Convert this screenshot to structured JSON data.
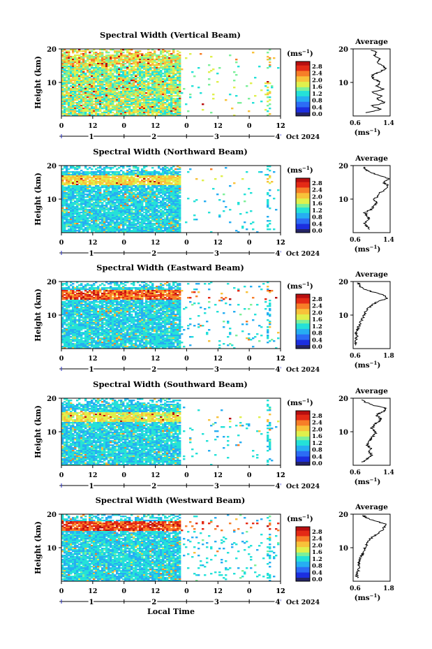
{
  "figure": {
    "xlabel": "Local Time",
    "date_label": "Oct 2024",
    "ylabel": "Height (km)",
    "unit_label": "(ms",
    "unit_exp": "−1",
    "average_title": "Average",
    "colorbar_ticks": [
      "0.0",
      "0.4",
      "0.8",
      "1.2",
      "1.6",
      "2.0",
      "2.4",
      "2.8"
    ],
    "colorbar_colors": [
      "#252466",
      "#1c2fe0",
      "#2c6cf5",
      "#26aef2",
      "#24e1d8",
      "#7cf09a",
      "#e0f04c",
      "#f8c23a",
      "#f77e28",
      "#e42a16",
      "#b80f10"
    ]
  },
  "chart_data": [
    {
      "type": "heatmap",
      "title": "Spectral Width (Vertical Beam)",
      "x_ticks": [
        "0",
        "12",
        "0",
        "12",
        "0",
        "12",
        "0",
        "12"
      ],
      "day_labels": [
        "1",
        "2",
        "3",
        "4"
      ],
      "y_ticks": [
        20,
        10
      ],
      "ylim": [
        0,
        20
      ],
      "colorbar_range": [
        0.0,
        3.0
      ],
      "data_coverage": "continuous ~0 to 2 days, sparse after",
      "average_profile": {
        "xlim": [
          0.6,
          1.4
        ],
        "x_ticks": [
          "0.6",
          "1.4"
        ],
        "y_ticks": [
          20,
          10
        ],
        "height_km": [
          1,
          2,
          3,
          4,
          5,
          6,
          7,
          8,
          9,
          10,
          11,
          12,
          13,
          14,
          15,
          16,
          17,
          18,
          19,
          20
        ],
        "value": [
          0.9,
          1.2,
          1.0,
          1.3,
          1.1,
          1.2,
          1.0,
          1.25,
          1.1,
          1.2,
          1.05,
          1.0,
          1.15,
          1.3,
          1.25,
          1.1,
          1.2,
          1.05,
          1.1,
          0.95
        ]
      }
    },
    {
      "type": "heatmap",
      "title": "Spectral Width (Northward Beam)",
      "x_ticks": [
        "0",
        "12",
        "0",
        "12",
        "0",
        "12",
        "0",
        "12"
      ],
      "day_labels": [
        "1",
        "2",
        "3",
        "4"
      ],
      "y_ticks": [
        20,
        10
      ],
      "ylim": [
        0,
        20
      ],
      "colorbar_range": [
        0.0,
        3.0
      ],
      "average_profile": {
        "xlim": [
          0.6,
          1.4
        ],
        "x_ticks": [
          "0.6",
          "1.4"
        ],
        "y_ticks": [
          20,
          10
        ],
        "height_km": [
          1,
          2,
          3,
          4,
          5,
          6,
          7,
          8,
          9,
          10,
          11,
          12,
          13,
          14,
          15,
          16,
          17,
          18,
          19,
          20
        ],
        "value": [
          0.95,
          0.9,
          0.85,
          0.95,
          0.9,
          0.85,
          1.0,
          1.05,
          1.1,
          1.05,
          1.15,
          1.2,
          1.3,
          1.35,
          1.25,
          1.4,
          1.2,
          0.95,
          0.85,
          0.8
        ]
      }
    },
    {
      "type": "heatmap",
      "title": "Spectral Width (Eastward Beam)",
      "x_ticks": [
        "0",
        "12",
        "0",
        "12",
        "0",
        "12",
        "0",
        "12"
      ],
      "day_labels": [
        "1",
        "2",
        "3",
        "4"
      ],
      "y_ticks": [
        20,
        10
      ],
      "ylim": [
        0,
        20
      ],
      "colorbar_range": [
        0.0,
        3.0
      ],
      "average_profile": {
        "xlim": [
          0.6,
          1.8
        ],
        "x_ticks": [
          "0.6",
          "1.8"
        ],
        "y_ticks": [
          20,
          10
        ],
        "height_km": [
          1,
          2,
          3,
          4,
          5,
          6,
          7,
          8,
          9,
          10,
          11,
          12,
          13,
          14,
          15,
          16,
          17,
          18,
          19,
          20
        ],
        "value": [
          0.7,
          0.65,
          0.7,
          0.72,
          0.7,
          0.75,
          0.8,
          0.85,
          0.9,
          0.95,
          1.0,
          1.1,
          1.2,
          1.4,
          1.7,
          1.6,
          1.2,
          0.9,
          0.8,
          0.75
        ]
      }
    },
    {
      "type": "heatmap",
      "title": "Spectral Width (Southward Beam)",
      "x_ticks": [
        "0",
        "12",
        "0",
        "12",
        "0",
        "12",
        "0",
        "12"
      ],
      "day_labels": [
        "1",
        "2",
        "3",
        "4"
      ],
      "y_ticks": [
        20,
        10
      ],
      "ylim": [
        0,
        20
      ],
      "colorbar_range": [
        0.0,
        3.0
      ],
      "average_profile": {
        "xlim": [
          0.6,
          1.4
        ],
        "x_ticks": [
          "0.6",
          "1.4"
        ],
        "y_ticks": [
          20,
          10
        ],
        "height_km": [
          1,
          2,
          3,
          4,
          5,
          6,
          7,
          8,
          9,
          10,
          11,
          12,
          13,
          14,
          15,
          16,
          17,
          18,
          19,
          20
        ],
        "value": [
          0.8,
          0.9,
          1.0,
          0.95,
          1.0,
          0.9,
          0.95,
          1.0,
          1.05,
          1.1,
          1.0,
          1.05,
          1.15,
          1.2,
          1.1,
          1.25,
          1.3,
          1.0,
          0.85,
          0.7
        ]
      }
    },
    {
      "type": "heatmap",
      "title": "Spectral Width (Westward Beam)",
      "x_ticks": [
        "0",
        "12",
        "0",
        "12",
        "0",
        "12",
        "0",
        "12"
      ],
      "day_labels": [
        "1",
        "2",
        "3",
        "4"
      ],
      "y_ticks": [
        20,
        10
      ],
      "ylim": [
        0,
        20
      ],
      "colorbar_range": [
        0.0,
        3.0
      ],
      "average_profile": {
        "xlim": [
          0.6,
          1.8
        ],
        "x_ticks": [
          "0.6",
          "1.8"
        ],
        "y_ticks": [
          20,
          10
        ],
        "height_km": [
          1,
          2,
          3,
          4,
          5,
          6,
          7,
          8,
          9,
          10,
          11,
          12,
          13,
          14,
          15,
          16,
          17,
          18,
          19,
          20
        ],
        "value": [
          0.75,
          0.7,
          0.75,
          0.8,
          0.78,
          0.82,
          0.85,
          0.9,
          0.95,
          1.0,
          1.05,
          1.1,
          1.2,
          1.35,
          1.5,
          1.6,
          1.7,
          1.3,
          1.0,
          0.9
        ]
      }
    }
  ]
}
